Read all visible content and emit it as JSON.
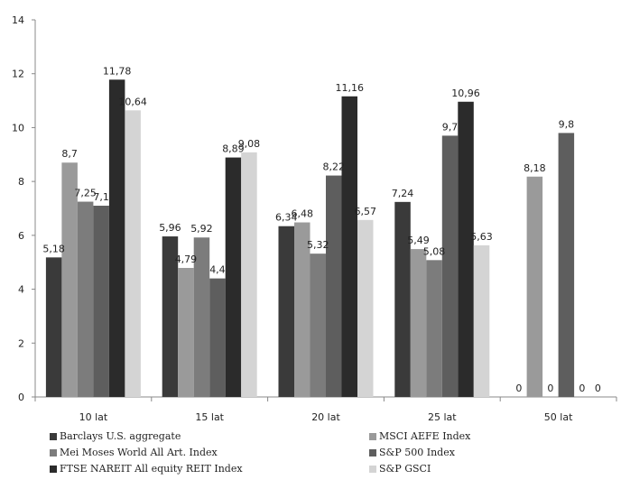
{
  "chart_data": {
    "type": "bar",
    "categories": [
      "10 lat",
      "15 lat",
      "20 lat",
      "25 lat",
      "50 lat"
    ],
    "ylim": [
      0,
      14
    ],
    "yticks": [
      0,
      2,
      4,
      6,
      8,
      10,
      12,
      14
    ],
    "ytick_labels": [
      "0",
      "2",
      "4",
      "6",
      "8",
      "10",
      "12",
      "14"
    ],
    "grid": false,
    "legend_position": "bottom",
    "series": [
      {
        "name": "Barclays U.S. aggregate",
        "color": "#3a3a3a",
        "values": [
          5.18,
          5.96,
          6.34,
          7.24,
          0
        ],
        "labels": [
          "5,18",
          "5,96",
          "6,34",
          "7,24",
          "0"
        ]
      },
      {
        "name": "MSCI AEFE Index",
        "color": "#9a9a9a",
        "values": [
          8.7,
          4.79,
          6.48,
          5.49,
          8.18
        ],
        "labels": [
          "8,7",
          "4,79",
          "6,48",
          "5,49",
          "8,18"
        ]
      },
      {
        "name": "Mei Moses World All Art. Index",
        "color": "#7c7c7c",
        "values": [
          7.25,
          5.92,
          5.32,
          5.08,
          0
        ],
        "labels": [
          "7,25",
          "5,92",
          "5,32",
          "5,08",
          "0"
        ]
      },
      {
        "name": "S&P 500 Index",
        "color": "#5e5e5e",
        "values": [
          7.1,
          4.4,
          8.22,
          9.7,
          9.8
        ],
        "labels": [
          "7,1",
          "4,4",
          "8,22",
          "9,7",
          "9,8"
        ]
      },
      {
        "name": "FTSE NAREIT All equity REIT Index",
        "color": "#2b2b2b",
        "values": [
          11.78,
          8.89,
          11.16,
          10.96,
          0
        ],
        "labels": [
          "11,78",
          "8,89",
          "11,16",
          "10,96",
          "0"
        ]
      },
      {
        "name": "S&P GSCI",
        "color": "#d4d4d4",
        "values": [
          10.64,
          9.08,
          6.57,
          5.63,
          0
        ],
        "labels": [
          "10,64",
          "9,08",
          "6,57",
          "5,63",
          "0"
        ]
      }
    ]
  }
}
